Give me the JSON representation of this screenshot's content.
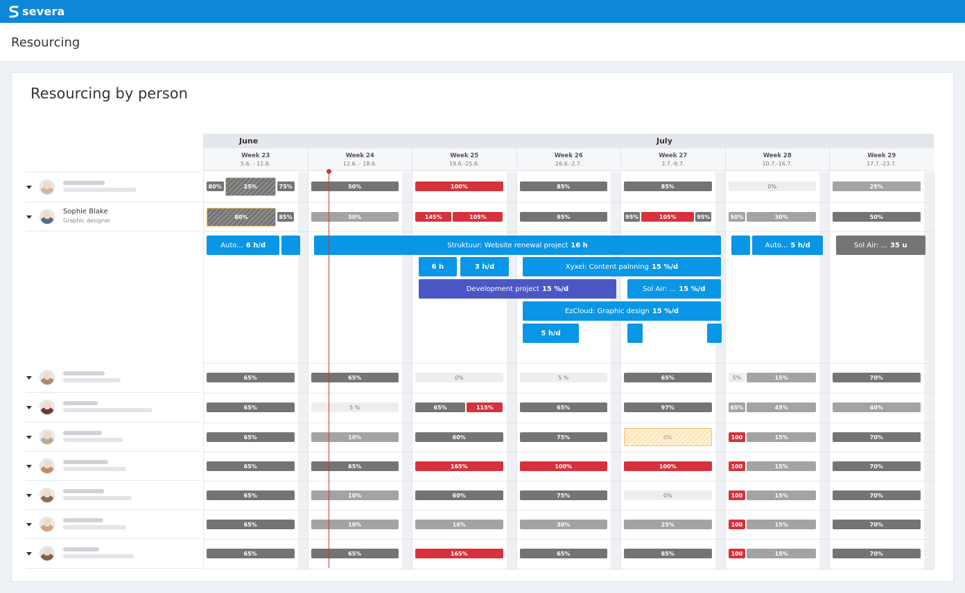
{
  "brand": {
    "name": "severa",
    "topbar_color": "#0d88d8"
  },
  "page_title": "Resourcing",
  "card_title": "Resourcing by person",
  "months": [
    {
      "label": "June"
    },
    {
      "label": "July"
    }
  ],
  "weeks": [
    {
      "label": "Week 23",
      "dates": "5.6. - 11.6."
    },
    {
      "label": "Week 24",
      "dates": "12.6. - 18.6."
    },
    {
      "label": "Week 25",
      "dates": "19.6.-25.6."
    },
    {
      "label": "Week 26",
      "dates": "26.6.-2.7."
    },
    {
      "label": "Week 27",
      "dates": "3.7.-9.7."
    },
    {
      "label": "Week 28",
      "dates": "10.7.-16.7."
    },
    {
      "label": "Week 29",
      "dates": "17.7.-23.7."
    }
  ],
  "people": [
    {
      "name": "",
      "role": "",
      "avatar_color": "#c9b9a6",
      "weeks": [
        [
          {
            "l": "80%",
            "c": "dark",
            "f": 0.2
          },
          {
            "l": "25%",
            "c": "hatchdark",
            "f": 0.6
          },
          {
            "l": "75%",
            "c": "dark",
            "f": 0.2
          }
        ],
        [
          {
            "l": "50%",
            "c": "dark",
            "f": 1
          }
        ],
        [
          {
            "l": "100%",
            "c": "red",
            "f": 1
          }
        ],
        [
          {
            "l": "85%",
            "c": "dark",
            "f": 1
          }
        ],
        [
          {
            "l": "85%",
            "c": "dark",
            "f": 1
          }
        ],
        [
          {
            "l": "0%",
            "c": "light",
            "f": 1
          }
        ],
        [
          {
            "l": "25%",
            "c": "mid",
            "f": 1
          }
        ]
      ]
    },
    {
      "name": "Sophie Blake",
      "role": "Graphic designer",
      "avatar_color": "#5a6a78",
      "weeks": [
        [
          {
            "l": "80%",
            "c": "hatchdark",
            "f": 0.8
          },
          {
            "l": "85%",
            "c": "dark",
            "f": 0.2
          }
        ],
        [
          {
            "l": "50%",
            "c": "mid",
            "f": 1
          }
        ],
        [
          {
            "l": "145%",
            "c": "red",
            "f": 0.42
          },
          {
            "l": "105%",
            "c": "red",
            "f": 0.58
          }
        ],
        [
          {
            "l": "95%",
            "c": "dark",
            "f": 1
          }
        ],
        [
          {
            "l": "95%",
            "c": "dark",
            "f": 0.19
          },
          {
            "l": "105%",
            "c": "red",
            "f": 0.62
          },
          {
            "l": "95%",
            "c": "dark",
            "f": 0.19
          }
        ],
        [
          {
            "l": "50%",
            "c": "mid",
            "f": 0.2
          },
          {
            "l": "30%",
            "c": "mid",
            "f": 0.8
          }
        ],
        [
          {
            "l": "50%",
            "c": "dark",
            "f": 1
          }
        ]
      ]
    },
    {
      "name": "",
      "role": "",
      "avatar_color": "#a88b74",
      "weeks": [
        [
          {
            "l": "65%",
            "c": "dark",
            "f": 1
          }
        ],
        [
          {
            "l": "65%",
            "c": "dark",
            "f": 1
          }
        ],
        [
          {
            "l": "0%",
            "c": "light",
            "f": 1
          }
        ],
        [
          {
            "l": "5 %",
            "c": "light",
            "f": 1
          }
        ],
        [
          {
            "l": "65%",
            "c": "dark",
            "f": 1
          }
        ],
        [
          {
            "l": "5%",
            "c": "light",
            "f": 0.2
          },
          {
            "l": "15%",
            "c": "mid",
            "f": 0.8
          }
        ],
        [
          {
            "l": "70%",
            "c": "dark",
            "f": 1
          }
        ]
      ]
    },
    {
      "name": "",
      "role": "",
      "avatar_color": "#6b3a3a",
      "weeks": [
        [
          {
            "l": "65%",
            "c": "dark",
            "f": 1
          }
        ],
        [
          {
            "l": "5 %",
            "c": "light",
            "f": 1
          }
        ],
        [
          {
            "l": "65%",
            "c": "dark",
            "f": 0.58
          },
          {
            "l": "115%",
            "c": "red",
            "f": 0.42
          }
        ],
        [
          {
            "l": "65%",
            "c": "dark",
            "f": 1
          }
        ],
        [
          {
            "l": "97%",
            "c": "dark",
            "f": 1
          }
        ],
        [
          {
            "l": "65%",
            "c": "mid",
            "f": 0.2
          },
          {
            "l": "45%",
            "c": "mid",
            "f": 0.8
          }
        ],
        [
          {
            "l": "40%",
            "c": "mid",
            "f": 1
          }
        ]
      ]
    },
    {
      "name": "",
      "role": "",
      "avatar_color": "#b9aa99",
      "weeks": [
        [
          {
            "l": "65%",
            "c": "dark",
            "f": 1
          }
        ],
        [
          {
            "l": "10%",
            "c": "mid",
            "f": 1
          }
        ],
        [
          {
            "l": "60%",
            "c": "dark",
            "f": 1
          }
        ],
        [
          {
            "l": "75%",
            "c": "dark",
            "f": 1
          }
        ],
        [
          {
            "l": "0%",
            "c": "hatch",
            "f": 1
          }
        ],
        [
          {
            "l": "100",
            "c": "red",
            "f": 0.2
          },
          {
            "l": "15%",
            "c": "mid",
            "f": 0.8
          }
        ],
        [
          {
            "l": "70%",
            "c": "dark",
            "f": 1
          }
        ]
      ]
    },
    {
      "name": "",
      "role": "",
      "avatar_color": "#c08a6e",
      "weeks": [
        [
          {
            "l": "65%",
            "c": "dark",
            "f": 1
          }
        ],
        [
          {
            "l": "65%",
            "c": "dark",
            "f": 1
          }
        ],
        [
          {
            "l": "165%",
            "c": "red",
            "f": 1
          }
        ],
        [
          {
            "l": "100%",
            "c": "red",
            "f": 1
          }
        ],
        [
          {
            "l": "100%",
            "c": "red",
            "f": 1
          }
        ],
        [
          {
            "l": "100",
            "c": "red",
            "f": 0.2
          },
          {
            "l": "15%",
            "c": "mid",
            "f": 0.8
          }
        ],
        [
          {
            "l": "70%",
            "c": "dark",
            "f": 1
          }
        ]
      ]
    },
    {
      "name": "",
      "role": "",
      "avatar_color": "#8d6a55",
      "weeks": [
        [
          {
            "l": "65%",
            "c": "dark",
            "f": 1
          }
        ],
        [
          {
            "l": "10%",
            "c": "mid",
            "f": 1
          }
        ],
        [
          {
            "l": "60%",
            "c": "dark",
            "f": 1
          }
        ],
        [
          {
            "l": "75%",
            "c": "dark",
            "f": 1
          }
        ],
        [
          {
            "l": "0%",
            "c": "light",
            "f": 1
          }
        ],
        [
          {
            "l": "100",
            "c": "red",
            "f": 0.2
          },
          {
            "l": "15%",
            "c": "mid",
            "f": 0.8
          }
        ],
        [
          {
            "l": "70%",
            "c": "dark",
            "f": 1
          }
        ]
      ]
    },
    {
      "name": "",
      "role": "",
      "avatar_color": "#d0a782",
      "weeks": [
        [
          {
            "l": "65%",
            "c": "dark",
            "f": 1
          }
        ],
        [
          {
            "l": "10%",
            "c": "mid",
            "f": 1
          }
        ],
        [
          {
            "l": "16%",
            "c": "mid",
            "f": 1
          }
        ],
        [
          {
            "l": "30%",
            "c": "mid",
            "f": 1
          }
        ],
        [
          {
            "l": "25%",
            "c": "mid",
            "f": 1
          }
        ],
        [
          {
            "l": "100",
            "c": "red",
            "f": 0.2
          },
          {
            "l": "15%",
            "c": "mid",
            "f": 0.8
          }
        ],
        [
          {
            "l": "70%",
            "c": "dark",
            "f": 1
          }
        ]
      ]
    },
    {
      "name": "",
      "role": "",
      "avatar_color": "#7a6255",
      "weeks": [
        [
          {
            "l": "65%",
            "c": "dark",
            "f": 1
          }
        ],
        [
          {
            "l": "65%",
            "c": "dark",
            "f": 1
          }
        ],
        [
          {
            "l": "165%",
            "c": "red",
            "f": 1
          }
        ],
        [
          {
            "l": "65%",
            "c": "dark",
            "f": 1
          }
        ],
        [
          {
            "l": "85%",
            "c": "dark",
            "f": 1
          }
        ],
        [
          {
            "l": "100",
            "c": "red",
            "f": 0.2
          },
          {
            "l": "15%",
            "c": "mid",
            "f": 0.8
          }
        ],
        [
          {
            "l": "70%",
            "c": "dark",
            "f": 1
          }
        ]
      ]
    }
  ],
  "projects": [
    {
      "name": "Auto...",
      "value": "6 h/d",
      "color": "blue",
      "lane": 0,
      "start": 0,
      "span": 0.7
    },
    {
      "name": "",
      "value": "",
      "color": "blue",
      "lane": 0,
      "start": 0.72,
      "span": 0.18
    },
    {
      "name": "Struktuur: Website renewal project",
      "value": "16 h",
      "color": "blue",
      "lane": 0,
      "start": 1.03,
      "span": 3.9
    },
    {
      "name": "",
      "value": "",
      "color": "blue",
      "lane": 0,
      "start": 5.03,
      "span": 0.18
    },
    {
      "name": "Auto...",
      "value": "5 h/d",
      "color": "blue",
      "lane": 0,
      "start": 5.23,
      "span": 0.68
    },
    {
      "name": "Sol Air: ...",
      "value": "35 u",
      "color": "gray",
      "lane": 0,
      "start": 6.03,
      "span": 0.86
    },
    {
      "name": "",
      "value": "6 h",
      "color": "blue",
      "lane": 1,
      "start": 2.03,
      "span": 0.37
    },
    {
      "name": "",
      "value": "3 h/d",
      "color": "blue",
      "lane": 1,
      "start": 2.43,
      "span": 0.47
    },
    {
      "name": "Xyxel: Content palnning",
      "value": "15 %/d",
      "color": "blue",
      "lane": 1,
      "start": 3.03,
      "span": 1.9
    },
    {
      "name": "Development project",
      "value": "15 %/d",
      "color": "purple",
      "lane": 2,
      "start": 2.03,
      "span": 1.9
    },
    {
      "name": "Sol Air: ...",
      "value": "15 %/d",
      "color": "blue",
      "lane": 2,
      "start": 4.03,
      "span": 0.9
    },
    {
      "name": "EzCloud: Graphic design",
      "value": "15 %/d",
      "color": "blue",
      "lane": 3,
      "start": 3.03,
      "span": 1.9
    },
    {
      "name": "",
      "value": "5 h/d",
      "color": "blue",
      "lane": 4,
      "start": 3.03,
      "span": 0.54
    },
    {
      "name": "",
      "value": "",
      "color": "blue",
      "lane": 4,
      "start": 4.03,
      "span": 0.15
    },
    {
      "name": "",
      "value": "",
      "color": "blue",
      "lane": 4,
      "start": 4.8,
      "span": 0.14
    }
  ],
  "colors": {
    "dark": "#747474",
    "mid": "#a3a3a3",
    "red": "#d7313b",
    "blue": "#0a96e6",
    "purple": "#4c57c6",
    "today": "#c23a3a"
  }
}
